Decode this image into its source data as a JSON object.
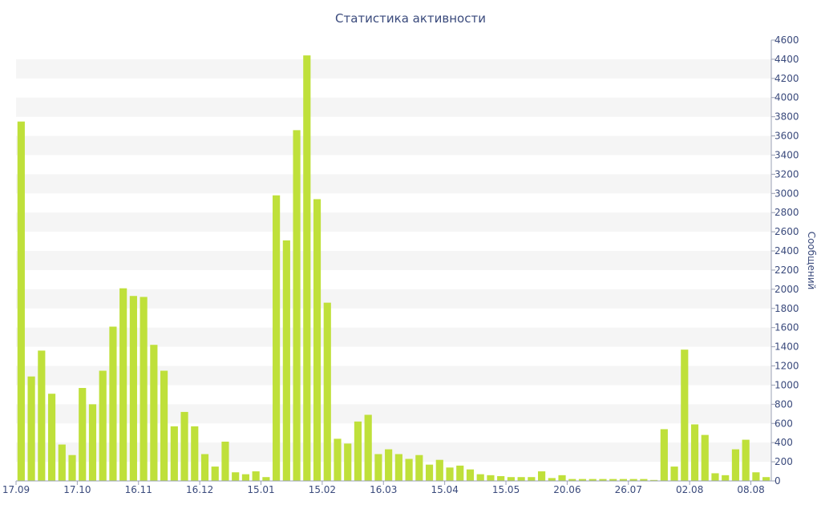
{
  "chart_data": {
    "type": "bar",
    "title": "Статистика активности",
    "ylabel": "Сообщений",
    "xlabel": "",
    "ylim": [
      0,
      4600
    ],
    "yticks": [
      0,
      200,
      400,
      600,
      800,
      1000,
      1200,
      1400,
      1600,
      1800,
      2000,
      2200,
      2400,
      2600,
      2800,
      3000,
      3200,
      3400,
      3600,
      3800,
      4000,
      4200,
      4400,
      4600
    ],
    "y_axis_side": "right",
    "x_tick_labels": [
      {
        "label": "17.09",
        "index": 0
      },
      {
        "label": "17.10",
        "index": 6
      },
      {
        "label": "16.11",
        "index": 12
      },
      {
        "label": "16.12",
        "index": 18
      },
      {
        "label": "15.01",
        "index": 24
      },
      {
        "label": "15.02",
        "index": 30
      },
      {
        "label": "16.03",
        "index": 36
      },
      {
        "label": "15.04",
        "index": 42
      },
      {
        "label": "15.05",
        "index": 48
      },
      {
        "label": "20.06",
        "index": 54
      },
      {
        "label": "26.07",
        "index": 60
      },
      {
        "label": "02.08",
        "index": 66
      },
      {
        "label": "08.08",
        "index": 72
      }
    ],
    "values": [
      3750,
      1090,
      1360,
      910,
      380,
      270,
      970,
      800,
      1150,
      1610,
      2010,
      1930,
      1920,
      1420,
      1150,
      570,
      720,
      570,
      280,
      150,
      410,
      90,
      70,
      100,
      40,
      2980,
      2510,
      3660,
      4440,
      2940,
      1860,
      440,
      390,
      620,
      690,
      280,
      330,
      280,
      230,
      270,
      170,
      220,
      140,
      160,
      120,
      70,
      60,
      50,
      40,
      40,
      40,
      100,
      30,
      60,
      20,
      20,
      20,
      20,
      20,
      20,
      20,
      20,
      10,
      540,
      150,
      1370,
      590,
      480,
      80,
      60,
      330,
      430,
      90,
      40
    ],
    "bar_color": "#bfe03a",
    "grid": "alternating horizontal bands",
    "legend": "none"
  }
}
